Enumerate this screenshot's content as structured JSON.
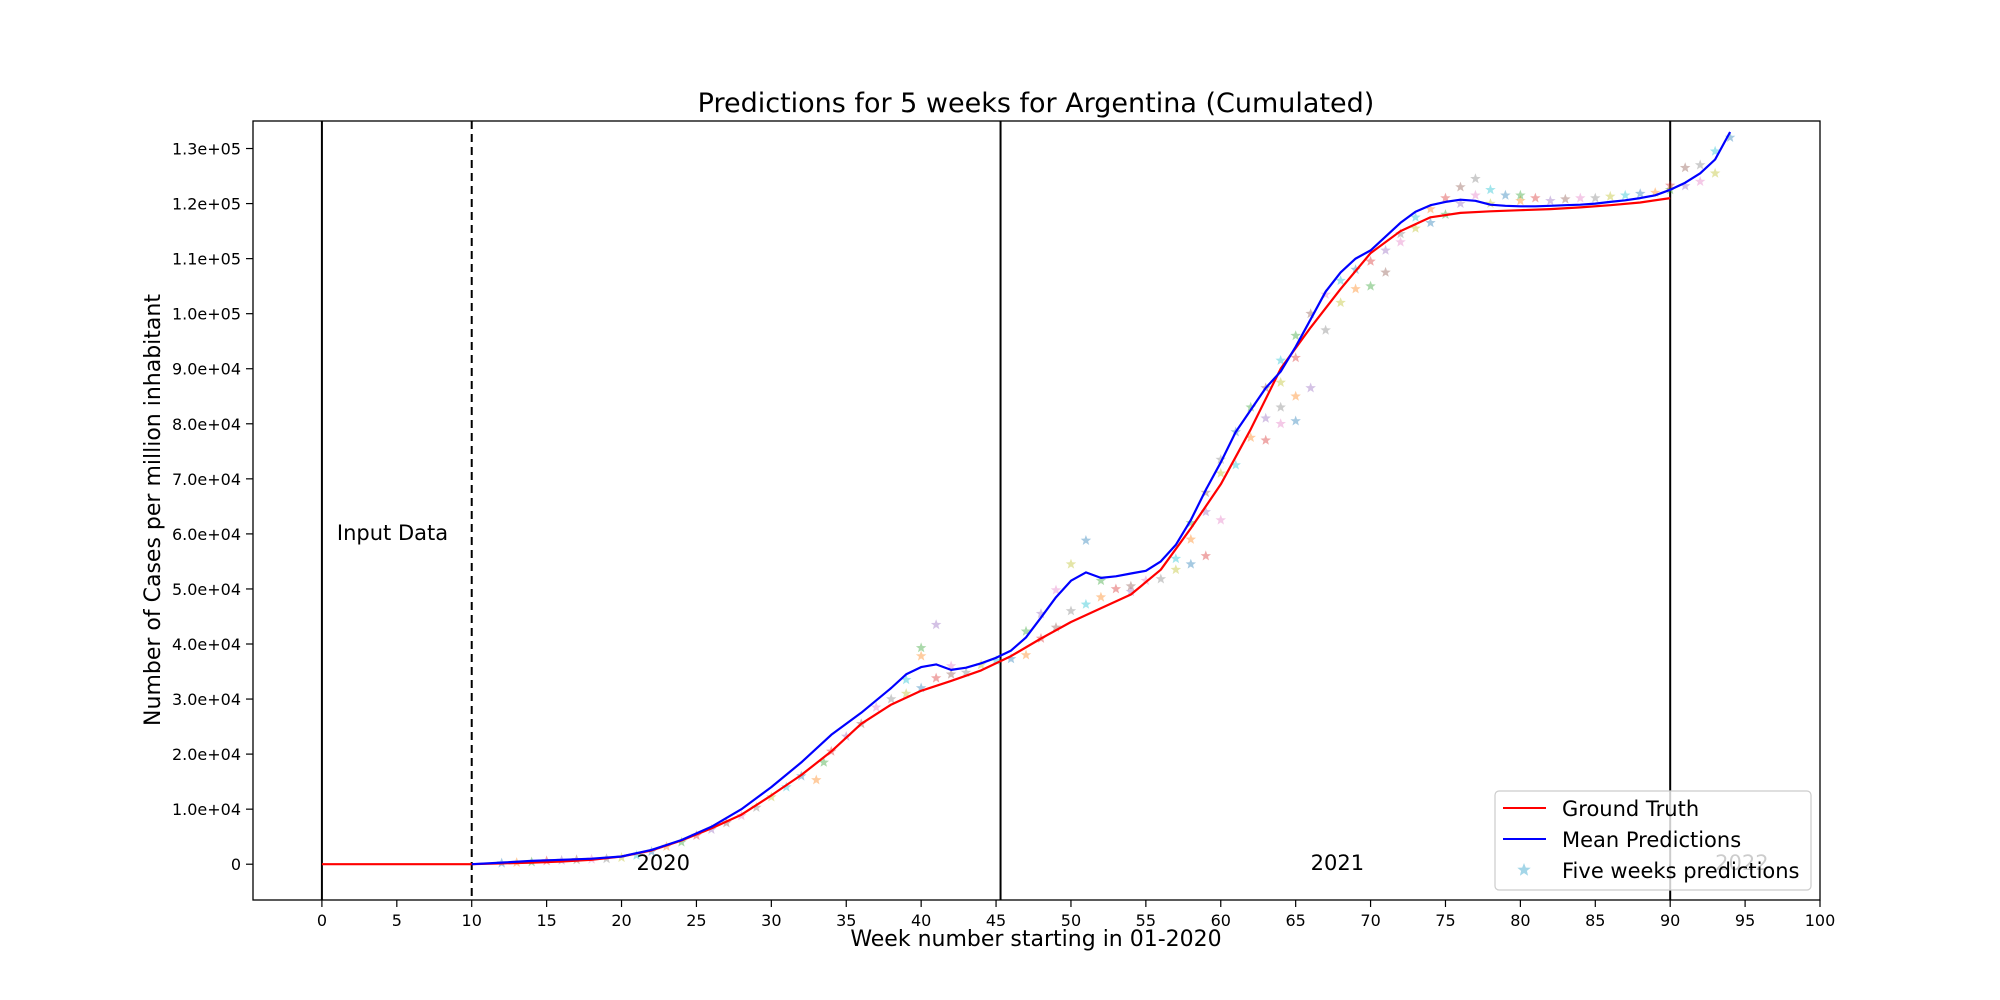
{
  "chart_data": {
    "type": "line",
    "title": "Predictions for 5 weeks for Argentina (Cumulated)",
    "xlabel": "Week number starting in 01-2020",
    "ylabel": "Number of Cases per million inhabitant",
    "xlim": [
      -4.6,
      100
    ],
    "ylim": [
      -6500,
      135000
    ],
    "x_ticks": [
      0,
      5,
      10,
      15,
      20,
      25,
      30,
      35,
      40,
      45,
      50,
      55,
      60,
      65,
      70,
      75,
      80,
      85,
      90,
      95,
      100
    ],
    "y_ticks": [
      0,
      10000,
      20000,
      30000,
      40000,
      50000,
      60000,
      70000,
      80000,
      90000,
      100000,
      110000,
      120000,
      130000
    ],
    "y_tick_labels": [
      "0",
      "1.0e+04",
      "2.0e+04",
      "3.0e+04",
      "4.0e+04",
      "5.0e+04",
      "6.0e+04",
      "7.0e+04",
      "8.0e+04",
      "9.0e+04",
      "1.0e+05",
      "1.1e+05",
      "1.2e+05",
      "1.3e+05"
    ],
    "grid": false,
    "legend_position": "lower-right",
    "vlines": [
      {
        "x": 0,
        "style": "solid"
      },
      {
        "x": 10,
        "style": "dashed"
      },
      {
        "x": 45.3,
        "style": "solid"
      },
      {
        "x": 90,
        "style": "solid"
      }
    ],
    "annotations": [
      {
        "text": "Input Data",
        "x": 1,
        "y": 60000
      },
      {
        "text": "2020",
        "x": 21,
        "y": 0
      },
      {
        "text": "2021",
        "x": 66,
        "y": 0
      },
      {
        "text": "2022",
        "x": 93,
        "y": 0
      }
    ],
    "series": [
      {
        "name": "Ground Truth",
        "color": "#ff0000",
        "x": [
          0,
          2,
          4,
          6,
          8,
          10,
          12,
          14,
          16,
          18,
          20,
          22,
          24,
          26,
          28,
          30,
          32,
          34,
          36,
          38,
          40,
          42,
          44,
          46,
          48,
          50,
          52,
          54,
          56,
          58,
          60,
          62,
          64,
          66,
          68,
          70,
          72,
          74,
          76,
          78,
          80,
          82,
          84,
          86,
          88,
          90
        ],
        "y": [
          0,
          0,
          0,
          0,
          0,
          0,
          150,
          300,
          500,
          800,
          1400,
          2500,
          4300,
          6500,
          9000,
          12500,
          16200,
          20500,
          25500,
          29000,
          31500,
          33300,
          35200,
          37800,
          41000,
          44000,
          46500,
          49000,
          53500,
          61000,
          69000,
          79000,
          90000,
          97500,
          104500,
          111000,
          115000,
          117500,
          118300,
          118600,
          118800,
          119000,
          119300,
          119700,
          120200,
          121000
        ]
      },
      {
        "name": "Mean Predictions",
        "color": "#0000ff",
        "x": [
          10,
          12,
          14,
          16,
          18,
          20,
          22,
          24,
          26,
          28,
          30,
          32,
          34,
          36,
          38,
          39,
          40,
          41,
          42,
          43,
          44,
          45,
          46,
          47,
          48,
          49,
          50,
          51,
          52,
          53,
          54,
          55,
          56,
          57,
          58,
          59,
          60,
          61,
          62,
          63,
          64,
          65,
          66,
          67,
          68,
          69,
          70,
          71,
          72,
          73,
          74,
          75,
          76,
          77,
          78,
          79,
          80,
          81,
          82,
          83,
          84,
          85,
          86,
          87,
          88,
          89,
          90,
          91,
          92,
          93,
          94
        ],
        "y": [
          0,
          300,
          600,
          800,
          1000,
          1400,
          2600,
          4400,
          6800,
          10000,
          14000,
          18500,
          23500,
          27500,
          32000,
          34500,
          35800,
          36300,
          35300,
          35700,
          36500,
          37500,
          38800,
          41200,
          44800,
          48500,
          51500,
          53000,
          52000,
          52300,
          52800,
          53300,
          55000,
          58000,
          62500,
          68000,
          73000,
          78500,
          82500,
          86500,
          89500,
          94000,
          99000,
          104000,
          107500,
          110000,
          111500,
          114000,
          116500,
          118500,
          119700,
          120300,
          120700,
          120500,
          119800,
          119600,
          119500,
          119500,
          119600,
          119700,
          119800,
          120000,
          120300,
          120600,
          121000,
          121500,
          122500,
          123800,
          125500,
          128000,
          133000
        ]
      }
    ],
    "scatter_series": {
      "name": "Five weeks predictions",
      "marker": "star",
      "colors": [
        "#1f77b4",
        "#ff7f0e",
        "#2ca02c",
        "#d62728",
        "#9467bd",
        "#8c564b",
        "#e377c2",
        "#7f7f7f",
        "#bcbd22",
        "#17becf"
      ],
      "points": [
        [
          12,
          200
        ],
        [
          13,
          300
        ],
        [
          14,
          400
        ],
        [
          15,
          600
        ],
        [
          16,
          700
        ],
        [
          17,
          800
        ],
        [
          18,
          900
        ],
        [
          19,
          1000
        ],
        [
          20,
          1200
        ],
        [
          21,
          1600
        ],
        [
          22,
          2300
        ],
        [
          23,
          3200
        ],
        [
          24,
          4000
        ],
        [
          25,
          5200
        ],
        [
          26,
          6300
        ],
        [
          27,
          7500
        ],
        [
          28,
          8800
        ],
        [
          29,
          10300
        ],
        [
          30,
          12200
        ],
        [
          31,
          14000
        ],
        [
          32,
          16000
        ],
        [
          33,
          15300
        ],
        [
          33.5,
          18500
        ],
        [
          34,
          20500
        ],
        [
          35,
          23200
        ],
        [
          36,
          25500
        ],
        [
          37,
          28500
        ],
        [
          38,
          30000
        ],
        [
          39,
          31000
        ],
        [
          39,
          33500
        ],
        [
          40,
          32000
        ],
        [
          40,
          37800
        ],
        [
          40,
          39300
        ],
        [
          41,
          33800
        ],
        [
          41,
          43500
        ],
        [
          42,
          34500
        ],
        [
          42,
          36000
        ],
        [
          43,
          34800
        ],
        [
          44,
          36200
        ],
        [
          45,
          37000
        ],
        [
          46,
          37300
        ],
        [
          47,
          38000
        ],
        [
          47,
          42300
        ],
        [
          48,
          41000
        ],
        [
          48,
          45500
        ],
        [
          49,
          43000
        ],
        [
          49,
          49800
        ],
        [
          50,
          46000
        ],
        [
          50,
          54500
        ],
        [
          51,
          47200
        ],
        [
          51,
          58800
        ],
        [
          52,
          48500
        ],
        [
          52,
          51500
        ],
        [
          53,
          50000
        ],
        [
          54,
          49500
        ],
        [
          54,
          50500
        ],
        [
          55,
          51500
        ],
        [
          56,
          51800
        ],
        [
          57,
          53500
        ],
        [
          57,
          55500
        ],
        [
          58,
          54500
        ],
        [
          58,
          59000
        ],
        [
          58,
          62000
        ],
        [
          59,
          56000
        ],
        [
          59,
          64000
        ],
        [
          59,
          67500
        ],
        [
          60,
          62500
        ],
        [
          60,
          73500
        ],
        [
          60,
          71000
        ],
        [
          61,
          72500
        ],
        [
          61,
          78500
        ],
        [
          62,
          77500
        ],
        [
          62,
          83000
        ],
        [
          63,
          77000
        ],
        [
          63,
          81000
        ],
        [
          63,
          86500
        ],
        [
          64,
          80000
        ],
        [
          64,
          83000
        ],
        [
          64,
          87500
        ],
        [
          64,
          91500
        ],
        [
          65,
          80500
        ],
        [
          65,
          85000
        ],
        [
          65,
          96000
        ],
        [
          65,
          92000
        ],
        [
          66,
          86500
        ],
        [
          66,
          100000
        ],
        [
          67,
          103500
        ],
        [
          67,
          97000
        ],
        [
          68,
          102000
        ],
        [
          68,
          106000
        ],
        [
          69,
          108000
        ],
        [
          69,
          104500
        ],
        [
          70,
          105000
        ],
        [
          70,
          109500
        ],
        [
          71,
          111500
        ],
        [
          71,
          107500
        ],
        [
          72,
          113000
        ],
        [
          72,
          114500
        ],
        [
          73,
          115500
        ],
        [
          73,
          117500
        ],
        [
          74,
          116500
        ],
        [
          74,
          119000
        ],
        [
          75,
          118000
        ],
        [
          75,
          121000
        ],
        [
          76,
          120000
        ],
        [
          76,
          123000
        ],
        [
          77,
          121500
        ],
        [
          77,
          124500
        ],
        [
          78,
          120000
        ],
        [
          78,
          122500
        ],
        [
          79,
          121500
        ],
        [
          80,
          120500
        ],
        [
          80,
          121500
        ],
        [
          81,
          121000
        ],
        [
          82,
          120500
        ],
        [
          83,
          120800
        ],
        [
          84,
          121000
        ],
        [
          85,
          121000
        ],
        [
          86,
          121300
        ],
        [
          87,
          121500
        ],
        [
          88,
          121800
        ],
        [
          89,
          122000
        ],
        [
          90,
          122500
        ],
        [
          90,
          123300
        ],
        [
          91,
          123200
        ],
        [
          91,
          126500
        ],
        [
          92,
          124000
        ],
        [
          92,
          127000
        ],
        [
          93,
          125500
        ],
        [
          93,
          129500
        ],
        [
          94,
          132000
        ]
      ]
    }
  }
}
